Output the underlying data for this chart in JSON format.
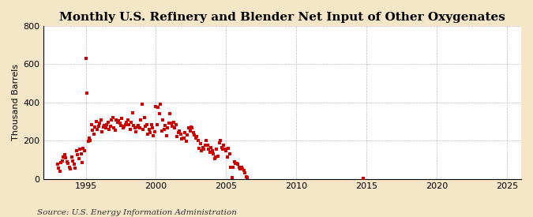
{
  "title": "Monthly U.S. Refinery and Blender Net Input of Other Oxygenates",
  "ylabel": "Thousand Barrels",
  "source_text": "Source: U.S. Energy Information Administration",
  "background_color": "#f5e6c8",
  "plot_bg_color": "#ffffff",
  "dot_color": "#cc0000",
  "dot_size": 5,
  "xlim": [
    1992,
    2026
  ],
  "ylim": [
    0,
    800
  ],
  "xticks": [
    1995,
    2000,
    2005,
    2010,
    2015,
    2020,
    2025
  ],
  "yticks": [
    0,
    200,
    400,
    600,
    800
  ],
  "grid_color": "#aaaaaa",
  "title_fontsize": 11,
  "label_fontsize": 8,
  "tick_fontsize": 8,
  "source_fontsize": 7.5,
  "data_x": [
    1993.0,
    1993.08,
    1993.17,
    1993.25,
    1993.33,
    1993.42,
    1993.5,
    1993.58,
    1993.67,
    1993.75,
    1993.83,
    1993.92,
    1994.0,
    1994.08,
    1994.17,
    1994.25,
    1994.33,
    1994.42,
    1994.5,
    1994.58,
    1994.67,
    1994.75,
    1994.83,
    1994.92,
    1995.0,
    1995.08,
    1995.17,
    1995.25,
    1995.33,
    1995.42,
    1995.5,
    1995.58,
    1995.67,
    1995.75,
    1995.83,
    1995.92,
    1996.0,
    1996.08,
    1996.17,
    1996.25,
    1996.33,
    1996.42,
    1996.5,
    1996.58,
    1996.67,
    1996.75,
    1996.83,
    1996.92,
    1997.0,
    1997.08,
    1997.17,
    1997.25,
    1997.33,
    1997.42,
    1997.5,
    1997.58,
    1997.67,
    1997.75,
    1997.83,
    1997.92,
    1998.0,
    1998.08,
    1998.17,
    1998.25,
    1998.33,
    1998.42,
    1998.5,
    1998.58,
    1998.67,
    1998.75,
    1998.83,
    1998.92,
    1999.0,
    1999.08,
    1999.17,
    1999.25,
    1999.33,
    1999.42,
    1999.5,
    1999.58,
    1999.67,
    1999.75,
    1999.83,
    1999.92,
    2000.0,
    2000.08,
    2000.17,
    2000.25,
    2000.33,
    2000.42,
    2000.5,
    2000.58,
    2000.67,
    2000.75,
    2000.83,
    2000.92,
    2001.0,
    2001.08,
    2001.17,
    2001.25,
    2001.33,
    2001.42,
    2001.5,
    2001.58,
    2001.67,
    2001.75,
    2001.83,
    2001.92,
    2002.0,
    2002.08,
    2002.17,
    2002.25,
    2002.33,
    2002.42,
    2002.5,
    2002.58,
    2002.67,
    2002.75,
    2002.83,
    2002.92,
    2003.0,
    2003.08,
    2003.17,
    2003.25,
    2003.33,
    2003.42,
    2003.5,
    2003.58,
    2003.67,
    2003.75,
    2003.83,
    2003.92,
    2004.0,
    2004.08,
    2004.17,
    2004.25,
    2004.33,
    2004.42,
    2004.5,
    2004.58,
    2004.67,
    2004.75,
    2004.83,
    2004.92,
    2005.0,
    2005.08,
    2005.17,
    2005.25,
    2005.33,
    2005.42,
    2005.5,
    2005.58,
    2005.67,
    2005.75,
    2005.83,
    2005.92,
    2006.0,
    2006.08,
    2006.17,
    2006.25,
    2006.33,
    2006.42,
    2006.5,
    2014.75
  ],
  "data_y": [
    75,
    55,
    40,
    85,
    95,
    115,
    125,
    110,
    90,
    80,
    60,
    50,
    115,
    95,
    75,
    55,
    145,
    125,
    105,
    155,
    130,
    85,
    160,
    145,
    630,
    450,
    195,
    215,
    200,
    285,
    255,
    235,
    270,
    300,
    260,
    275,
    290,
    310,
    245,
    270,
    280,
    265,
    285,
    295,
    260,
    275,
    310,
    320,
    265,
    255,
    310,
    295,
    305,
    290,
    280,
    315,
    265,
    275,
    285,
    295,
    310,
    285,
    260,
    295,
    345,
    280,
    265,
    245,
    270,
    280,
    265,
    310,
    390,
    260,
    320,
    275,
    285,
    235,
    260,
    240,
    285,
    265,
    225,
    245,
    380,
    285,
    375,
    340,
    390,
    250,
    310,
    260,
    280,
    225,
    265,
    290,
    340,
    290,
    275,
    295,
    265,
    285,
    220,
    240,
    250,
    235,
    210,
    215,
    215,
    240,
    195,
    230,
    265,
    250,
    270,
    265,
    240,
    230,
    215,
    220,
    200,
    160,
    185,
    145,
    165,
    155,
    175,
    200,
    175,
    155,
    140,
    165,
    145,
    130,
    105,
    115,
    155,
    120,
    190,
    200,
    165,
    155,
    175,
    155,
    145,
    115,
    160,
    130,
    60,
    5,
    60,
    90,
    80,
    80,
    75,
    60,
    50,
    60,
    50,
    45,
    30,
    10,
    5,
    4
  ]
}
